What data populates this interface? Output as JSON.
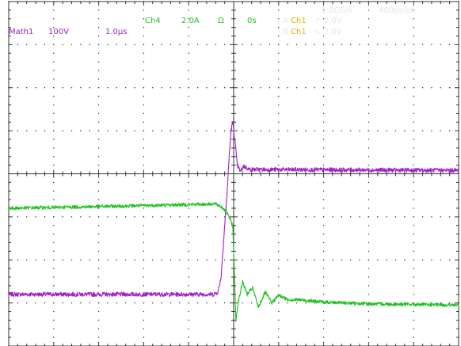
{
  "readout": {
    "math_name": "Math1",
    "math_scale": "100V",
    "timebase": "1.0µs",
    "ch4_name": "Ch4",
    "ch4_scale": "2.0A",
    "ch4_unit": "Ω",
    "delay": "0s",
    "sample_rate": "1.0GS/s",
    "record": "400ps/pt",
    "trig1_marker": "A",
    "trig1_channel": "Ch1",
    "trig1_slope": "↗",
    "trig1_level": "2.0V",
    "trig2_marker": "B",
    "trig2_channel": "Ch1",
    "trig2_slope": "↘",
    "trig2_level": "2.0V"
  },
  "colors": {
    "math": "#a020c8",
    "ch4": "#20c020",
    "ch1": "#e0b000",
    "grid": "#333333",
    "background": "#ffffff"
  },
  "chart_data": {
    "type": "line",
    "title": "",
    "xlabel": "",
    "ylabel": "",
    "x_unit": "µs",
    "xlim": [
      -5,
      5
    ],
    "ylim": [
      -4,
      4
    ],
    "y_unit": "divisions",
    "grid": true,
    "series": [
      {
        "name": "Math1",
        "color": "#a020c8",
        "noise": 0.05,
        "x": [
          -5,
          -0.45,
          -0.35,
          -0.28,
          -0.2,
          -0.15,
          -0.1,
          -0.06,
          -0.02,
          0.03,
          0.08,
          0.15,
          0.22,
          0.35,
          0.5,
          5
        ],
        "y": [
          -2.8,
          -2.8,
          -2.75,
          -2.4,
          -1.2,
          -0.5,
          0.4,
          1.0,
          1.2,
          0.75,
          0.2,
          0.05,
          0.18,
          0.1,
          0.1,
          0.08
        ]
      },
      {
        "name": "Ch4",
        "color": "#20c020",
        "noise": 0.04,
        "x": [
          -5,
          -2.5,
          -0.4,
          -0.3,
          -0.18,
          -0.08,
          -0.02,
          0.05,
          0.1,
          0.2,
          0.3,
          0.42,
          0.55,
          0.7,
          0.85,
          1.0,
          1.2,
          1.5,
          2.0,
          3.0,
          5
        ],
        "y": [
          -0.8,
          -0.75,
          -0.7,
          -0.75,
          -0.85,
          -1.05,
          -1.2,
          -3.4,
          -3.0,
          -2.5,
          -2.8,
          -2.65,
          -3.1,
          -2.75,
          -3.0,
          -2.82,
          -2.92,
          -2.93,
          -2.98,
          -3.02,
          -3.05
        ]
      }
    ]
  }
}
